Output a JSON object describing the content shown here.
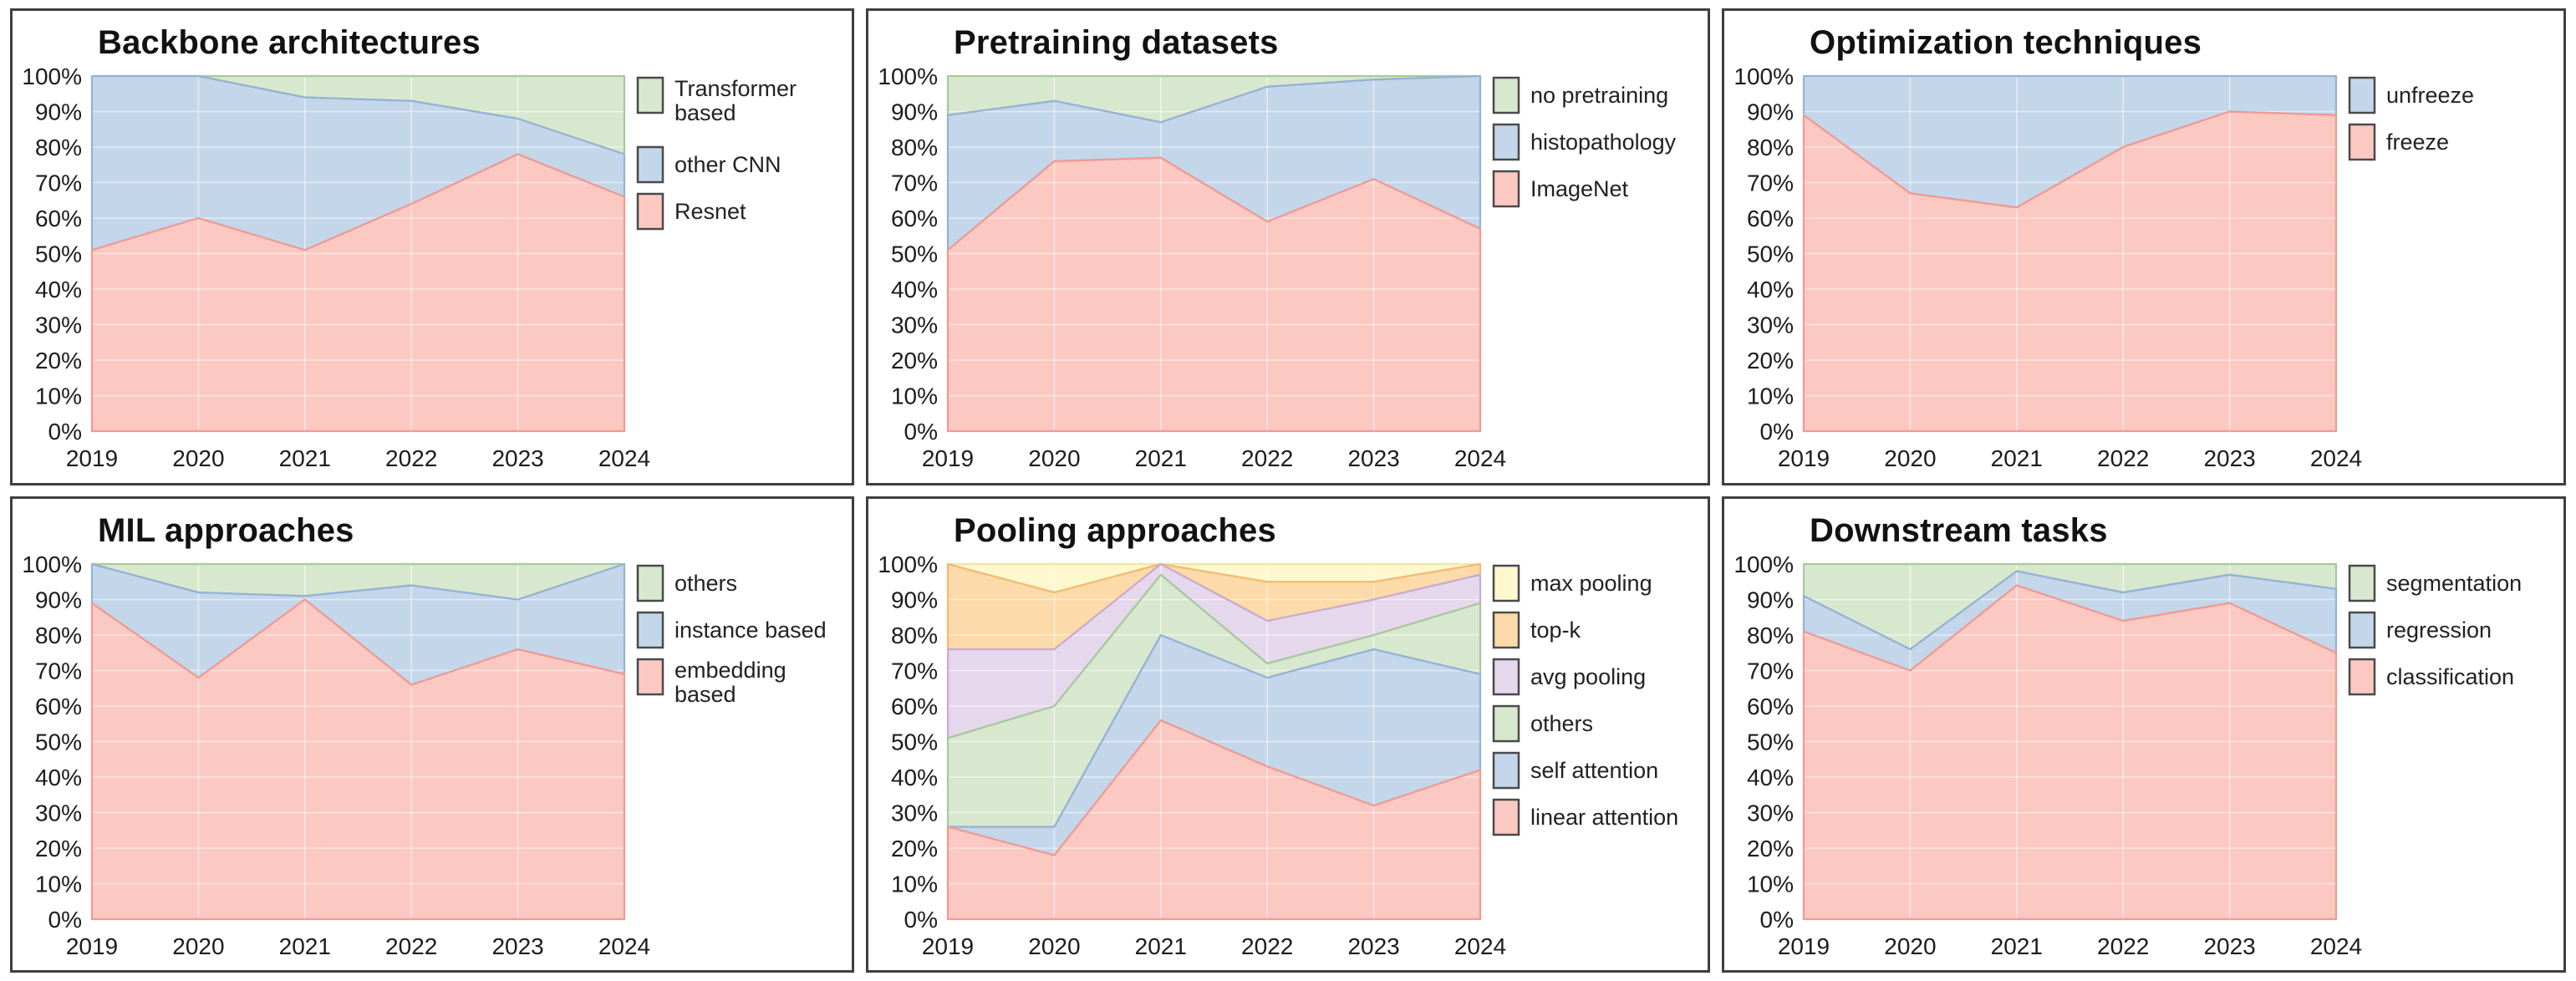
{
  "page": {
    "background": "#ffffff",
    "panel_border_color": "#3f3f3f",
    "grid_color": "rgba(255,255,255,0.5)",
    "tick_color": "#1c1c1c",
    "legend_text_color": "#222222",
    "legend_swatch_border": "#4a4a4a"
  },
  "axis": {
    "y_ticks": [
      "0%",
      "10%",
      "20%",
      "30%",
      "40%",
      "50%",
      "60%",
      "70%",
      "80%",
      "90%",
      "100%"
    ],
    "x_ticks": [
      "2019",
      "2020",
      "2021",
      "2022",
      "2023",
      "2024"
    ]
  },
  "chart_data": [
    {
      "type": "area",
      "stacked": true,
      "percent": true,
      "title": "Backbone architectures",
      "categories": [
        "2019",
        "2020",
        "2021",
        "2022",
        "2023",
        "2024"
      ],
      "ylim": [
        0,
        100
      ],
      "yticks": [
        "0%",
        "10%",
        "20%",
        "30%",
        "40%",
        "50%",
        "60%",
        "70%",
        "80%",
        "90%",
        "100%"
      ],
      "grid": true,
      "legend_position": "right",
      "series": [
        {
          "name": "Resnet",
          "label_lines": [
            "Resnet"
          ],
          "fill": "#fbc9c2",
          "stroke": "#f5998f",
          "values": [
            51,
            60,
            51,
            64,
            78,
            66
          ]
        },
        {
          "name": "other CNN",
          "label_lines": [
            "other CNN"
          ],
          "fill": "#c4d6ea",
          "stroke": "#94b2d7",
          "values": [
            49,
            40,
            43,
            29,
            10,
            12
          ]
        },
        {
          "name": "Transformer based",
          "label_lines": [
            "Transformer",
            "based"
          ],
          "fill": "#d8e8cf",
          "stroke": "#a6c99c",
          "values": [
            0,
            0,
            6,
            7,
            12,
            22
          ]
        }
      ]
    },
    {
      "type": "area",
      "stacked": true,
      "percent": true,
      "title": "Pretraining datasets",
      "categories": [
        "2019",
        "2020",
        "2021",
        "2022",
        "2023",
        "2024"
      ],
      "ylim": [
        0,
        100
      ],
      "yticks": [
        "0%",
        "10%",
        "20%",
        "30%",
        "40%",
        "50%",
        "60%",
        "70%",
        "80%",
        "90%",
        "100%"
      ],
      "grid": true,
      "legend_position": "right",
      "series": [
        {
          "name": "ImageNet",
          "label_lines": [
            "ImageNet"
          ],
          "fill": "#fbc9c2",
          "stroke": "#f5998f",
          "values": [
            51,
            76,
            77,
            59,
            71,
            57
          ]
        },
        {
          "name": "histopathology",
          "label_lines": [
            "histopathology"
          ],
          "fill": "#c4d6ea",
          "stroke": "#94b2d7",
          "values": [
            38,
            17,
            10,
            38,
            28,
            43
          ]
        },
        {
          "name": "no pretraining",
          "label_lines": [
            "no pretraining"
          ],
          "fill": "#d8e8cf",
          "stroke": "#a6c99c",
          "values": [
            11,
            7,
            13,
            3,
            1,
            0
          ]
        }
      ]
    },
    {
      "type": "area",
      "stacked": true,
      "percent": true,
      "title": "Optimization techniques",
      "categories": [
        "2019",
        "2020",
        "2021",
        "2022",
        "2023",
        "2024"
      ],
      "ylim": [
        0,
        100
      ],
      "yticks": [
        "0%",
        "10%",
        "20%",
        "30%",
        "40%",
        "50%",
        "60%",
        "70%",
        "80%",
        "90%",
        "100%"
      ],
      "grid": true,
      "legend_position": "right",
      "series": [
        {
          "name": "freeze",
          "label_lines": [
            "freeze"
          ],
          "fill": "#fbc9c2",
          "stroke": "#f5998f",
          "values": [
            89,
            67,
            63,
            80,
            90,
            89
          ]
        },
        {
          "name": "unfreeze",
          "label_lines": [
            "unfreeze"
          ],
          "fill": "#c4d6ea",
          "stroke": "#94b2d7",
          "values": [
            11,
            33,
            37,
            20,
            10,
            11
          ]
        }
      ]
    },
    {
      "type": "area",
      "stacked": true,
      "percent": true,
      "title": "MIL approaches",
      "categories": [
        "2019",
        "2020",
        "2021",
        "2022",
        "2023",
        "2024"
      ],
      "ylim": [
        0,
        100
      ],
      "yticks": [
        "0%",
        "10%",
        "20%",
        "30%",
        "40%",
        "50%",
        "60%",
        "70%",
        "80%",
        "90%",
        "100%"
      ],
      "grid": true,
      "legend_position": "right",
      "series": [
        {
          "name": "embedding based",
          "label_lines": [
            "embedding",
            "based"
          ],
          "fill": "#fbc9c2",
          "stroke": "#f5998f",
          "values": [
            89,
            68,
            90,
            66,
            76,
            69
          ]
        },
        {
          "name": "instance based",
          "label_lines": [
            "instance based"
          ],
          "fill": "#c4d6ea",
          "stroke": "#94b2d7",
          "values": [
            11,
            24,
            1,
            28,
            14,
            31
          ]
        },
        {
          "name": "others",
          "label_lines": [
            "others"
          ],
          "fill": "#d8e8cf",
          "stroke": "#a6c99c",
          "values": [
            0,
            8,
            9,
            6,
            10,
            0
          ]
        }
      ]
    },
    {
      "type": "area",
      "stacked": true,
      "percent": true,
      "title": "Pooling approaches",
      "categories": [
        "2019",
        "2020",
        "2021",
        "2022",
        "2023",
        "2024"
      ],
      "ylim": [
        0,
        100
      ],
      "yticks": [
        "0%",
        "10%",
        "20%",
        "30%",
        "40%",
        "50%",
        "60%",
        "70%",
        "80%",
        "90%",
        "100%"
      ],
      "grid": true,
      "legend_position": "right",
      "series": [
        {
          "name": "linear attention",
          "label_lines": [
            "linear attention"
          ],
          "fill": "#fbc9c2",
          "stroke": "#f5998f",
          "values": [
            26,
            18,
            56,
            43,
            32,
            42
          ]
        },
        {
          "name": "self attention",
          "label_lines": [
            "self attention"
          ],
          "fill": "#c4d6ea",
          "stroke": "#94b2d7",
          "values": [
            0,
            8,
            24,
            25,
            44,
            27
          ]
        },
        {
          "name": "others",
          "label_lines": [
            "others"
          ],
          "fill": "#d8e8cf",
          "stroke": "#a6c99c",
          "values": [
            25,
            34,
            17,
            4,
            4,
            20
          ]
        },
        {
          "name": "avg pooling",
          "label_lines": [
            "avg pooling"
          ],
          "fill": "#e6d8ec",
          "stroke": "#c7abd5",
          "values": [
            25,
            16,
            3,
            12,
            10,
            8
          ]
        },
        {
          "name": "top-k",
          "label_lines": [
            "top-k"
          ],
          "fill": "#fcdaa9",
          "stroke": "#f4ba74",
          "values": [
            24,
            16,
            0,
            11,
            5,
            3
          ]
        },
        {
          "name": "max pooling",
          "label_lines": [
            "max pooling"
          ],
          "fill": "#fdf8ce",
          "stroke": "#efe6a3",
          "values": [
            0,
            8,
            0,
            5,
            5,
            0
          ]
        }
      ]
    },
    {
      "type": "area",
      "stacked": true,
      "percent": true,
      "title": "Downstream tasks",
      "categories": [
        "2019",
        "2020",
        "2021",
        "2022",
        "2023",
        "2024"
      ],
      "ylim": [
        0,
        100
      ],
      "yticks": [
        "0%",
        "10%",
        "20%",
        "30%",
        "40%",
        "50%",
        "60%",
        "70%",
        "80%",
        "90%",
        "100%"
      ],
      "grid": true,
      "legend_position": "right",
      "series": [
        {
          "name": "classification",
          "label_lines": [
            "classification"
          ],
          "fill": "#fbc9c2",
          "stroke": "#f5998f",
          "values": [
            81,
            70,
            94,
            84,
            89,
            75
          ]
        },
        {
          "name": "regression",
          "label_lines": [
            "regression"
          ],
          "fill": "#c4d6ea",
          "stroke": "#94b2d7",
          "values": [
            10,
            6,
            4,
            8,
            8,
            18
          ]
        },
        {
          "name": "segmentation",
          "label_lines": [
            "segmentation"
          ],
          "fill": "#d8e8cf",
          "stroke": "#a6c99c",
          "values": [
            9,
            24,
            2,
            8,
            3,
            7
          ]
        }
      ]
    }
  ]
}
